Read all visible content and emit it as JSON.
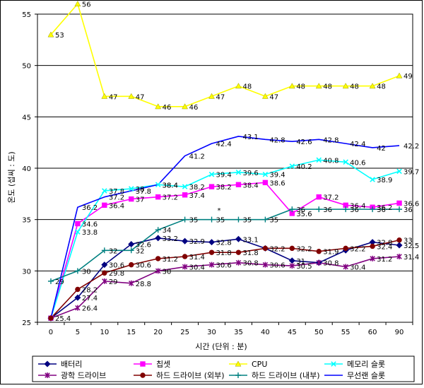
{
  "chart_data": {
    "type": "line",
    "xlabel": "시간 (단위 : 분)",
    "ylabel": "온도 (섭씨 : 도)",
    "x": [
      0,
      5,
      10,
      15,
      20,
      25,
      30,
      35,
      40,
      45,
      50,
      55,
      60,
      90
    ],
    "x_tick_labels": [
      "0",
      "5",
      "10",
      "15",
      "20",
      "25",
      "30",
      "35",
      "40",
      "45",
      "50",
      "55",
      "60",
      "90"
    ],
    "ylim": [
      25,
      55
    ],
    "y_ticks": [
      25,
      30,
      35,
      40,
      45,
      50,
      55
    ],
    "grid": "horizontal",
    "legend_position": "bottom",
    "stray_text": "*",
    "series": [
      {
        "name": "배터리",
        "color": "#000080",
        "marker": "diamond",
        "values": [
          25.4,
          27.4,
          30.6,
          32.6,
          33.2,
          32.9,
          32.8,
          33.1,
          32.2,
          31,
          30.8,
          32,
          32.8,
          32.5
        ],
        "labels": [
          "",
          "27.4",
          "30.6",
          "32.6",
          "33.2",
          "32.9",
          "32.8",
          "33.1",
          "",
          "31",
          "",
          "",
          "32.8",
          "32.5"
        ]
      },
      {
        "name": "칩셋",
        "color": "#ff00ff",
        "marker": "square",
        "values": [
          25.4,
          34.6,
          36.4,
          37,
          37.2,
          37.4,
          38.2,
          38.4,
          38.6,
          35.6,
          37.2,
          36.4,
          36.2,
          36.6
        ],
        "labels": [
          "",
          "34.6",
          "36.4",
          "37",
          "37.2",
          "37.4",
          "38.2",
          "38.4",
          "38.6",
          "35.6",
          "37.2",
          "36.4",
          "36.2",
          "36.6"
        ]
      },
      {
        "name": "CPU",
        "color": "#ffff00",
        "marker": "triangle",
        "values": [
          53,
          56,
          47,
          47,
          46,
          46,
          47,
          48,
          47,
          48,
          48,
          48,
          48,
          49
        ],
        "labels": [
          "53",
          "56",
          "47",
          "47",
          "46",
          "46",
          "47",
          "48",
          "47",
          "48",
          "48",
          "48",
          "48",
          "49"
        ]
      },
      {
        "name": "메모리 슬롯",
        "color": "#00ffff",
        "marker": "x",
        "values": [
          25.4,
          33.8,
          37.8,
          38,
          38.4,
          38.2,
          39.4,
          39.6,
          39.4,
          40.2,
          40.8,
          40.6,
          38.9,
          39.7
        ],
        "labels": [
          "",
          "33.8",
          "37.8",
          "38",
          "38.4",
          "38.2",
          "39.4",
          "39.6",
          "39.4",
          "40.2",
          "40.8",
          "40.6",
          "38.9",
          "39.7"
        ]
      },
      {
        "name": "광학 드라이브",
        "color": "#800080",
        "marker": "star",
        "values": [
          25.4,
          26.4,
          29,
          28.8,
          30,
          30.4,
          30.6,
          30.8,
          30.6,
          30.5,
          30.8,
          30.4,
          31.2,
          31.4
        ],
        "labels": [
          "25.4",
          "26.4",
          "29",
          "28.8",
          "30",
          "30.4",
          "30.6",
          "30.8",
          "30.6",
          "30.5",
          "30.8",
          "30.4",
          "31.2",
          "31.4"
        ]
      },
      {
        "name": "하드 드라이브 (외부)",
        "color": "#800000",
        "marker": "circle",
        "values": [
          25.4,
          28.2,
          29.8,
          30.6,
          31.2,
          31.4,
          31.8,
          31.8,
          32.2,
          32.2,
          31.9,
          32.2,
          32.4,
          33
        ],
        "labels": [
          "",
          "28.2",
          "29.8",
          "30.6",
          "31.2",
          "31.4",
          "31.8",
          "31.8",
          "32.2",
          "32.2",
          "31.9",
          "32.2",
          "32.4",
          "33"
        ]
      },
      {
        "name": "하드 드라이브 (내부)",
        "color": "#008080",
        "marker": "plus",
        "values": [
          29,
          30,
          32,
          32,
          34,
          35,
          35,
          35,
          35,
          36,
          36,
          36,
          36,
          36
        ],
        "labels": [
          "29",
          "30",
          "32",
          "32",
          "34",
          "35",
          "35",
          "35",
          "35",
          "36",
          "36",
          "36",
          "36",
          "36"
        ]
      },
      {
        "name": "무선랜 슬롯",
        "color": "#0000ff",
        "marker": "none",
        "values": [
          25.4,
          36.2,
          37.2,
          37.8,
          38.4,
          41.2,
          42.4,
          43.1,
          42.8,
          42.6,
          42.8,
          42.4,
          42,
          42.2
        ],
        "labels": [
          "",
          "36.2",
          "37.2",
          "37.8",
          "38.4",
          "41.2",
          "42.4",
          "43.1",
          "42.8",
          "42.6",
          "42.8",
          "42.4",
          "42",
          "42.2"
        ]
      }
    ]
  }
}
